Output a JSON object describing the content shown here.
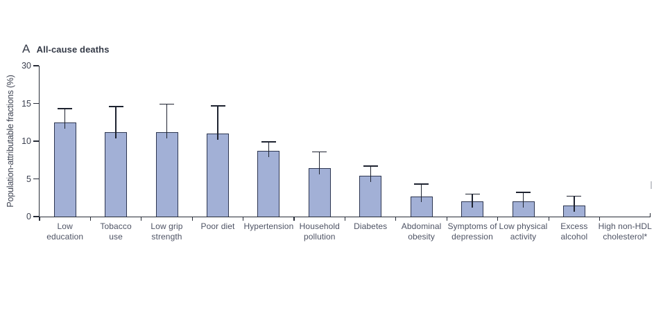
{
  "figure": {
    "panel_letter": "A",
    "panel_title": "All-cause deaths"
  },
  "chart_data": {
    "type": "bar",
    "title": "All-cause deaths",
    "xlabel": "",
    "ylabel": "Population-attributable fractions (%)",
    "categories": [
      "Low\neducation",
      "Tobacco\nuse",
      "Low grip\nstrength",
      "Poor diet",
      "Hypertension",
      "Household\npollution",
      "Diabetes",
      "Abdominal\nobesity",
      "Symptoms of\ndepression",
      "Low physical\nactivity",
      "Excess\nalcohol",
      "High non-HDL\ncholesterol*"
    ],
    "values": [
      12.5,
      11.2,
      11.2,
      11.0,
      8.7,
      6.4,
      5.4,
      2.7,
      2.0,
      2.0,
      1.5,
      0
    ],
    "error_upper": [
      14.3,
      14.6,
      14.9,
      14.7,
      9.9,
      8.6,
      6.7,
      4.3,
      3.0,
      3.2,
      2.7,
      0
    ],
    "ytick_labels": [
      "0",
      "5",
      "10",
      "15",
      "30"
    ],
    "axis_note": "ticks equally spaced; scale compressed above 15",
    "grid": false,
    "legend": "none",
    "colors": {
      "bar_fill": "#a2b0d6",
      "bar_border": "#2c3550",
      "error_bar": "#1d222f",
      "axis": "#262b36",
      "tick_text": "#3c4150",
      "label_text": "#4d5263",
      "title_text": "#343a47"
    }
  }
}
